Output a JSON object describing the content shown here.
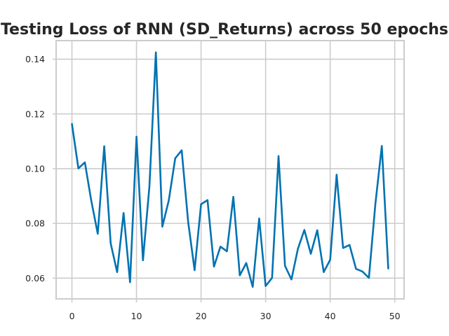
{
  "chart_data": {
    "type": "line",
    "title": "Testing Loss of RNN (SD_Returns) across 50 epochs",
    "xlabel": "",
    "ylabel": "",
    "xlim": [
      -2.45,
      51.45
    ],
    "ylim": [
      0.0524,
      0.1468
    ],
    "grid": true,
    "x_ticks": [
      0,
      10,
      20,
      30,
      40,
      50
    ],
    "y_ticks": [
      0.06,
      0.08,
      0.1,
      0.12,
      0.14
    ],
    "y_tick_labels": [
      "0.06",
      "0.08",
      "0.10",
      "0.12",
      "0.14"
    ],
    "series": [
      {
        "color": "#0072b2",
        "x": [
          0,
          1,
          2,
          3,
          4,
          5,
          6,
          7,
          8,
          9,
          10,
          11,
          12,
          13,
          14,
          15,
          16,
          17,
          18,
          19,
          20,
          21,
          22,
          23,
          24,
          25,
          26,
          27,
          28,
          29,
          30,
          31,
          32,
          33,
          34,
          35,
          36,
          37,
          38,
          39,
          40,
          41,
          42,
          43,
          44,
          45,
          46,
          47,
          48,
          49
        ],
        "values": [
          0.1163,
          0.1001,
          0.1023,
          0.0882,
          0.0762,
          0.1082,
          0.0727,
          0.0622,
          0.0838,
          0.0585,
          0.1117,
          0.0665,
          0.0935,
          0.1425,
          0.0788,
          0.0884,
          0.1038,
          0.1067,
          0.0806,
          0.0629,
          0.087,
          0.0885,
          0.0642,
          0.0715,
          0.0698,
          0.0897,
          0.061,
          0.0655,
          0.0568,
          0.0818,
          0.0571,
          0.0601,
          0.1046,
          0.0645,
          0.0595,
          0.0707,
          0.0776,
          0.0689,
          0.0775,
          0.0622,
          0.0667,
          0.0978,
          0.071,
          0.0721,
          0.0634,
          0.0624,
          0.0601,
          0.0871,
          0.1083,
          0.0635
        ]
      }
    ]
  }
}
